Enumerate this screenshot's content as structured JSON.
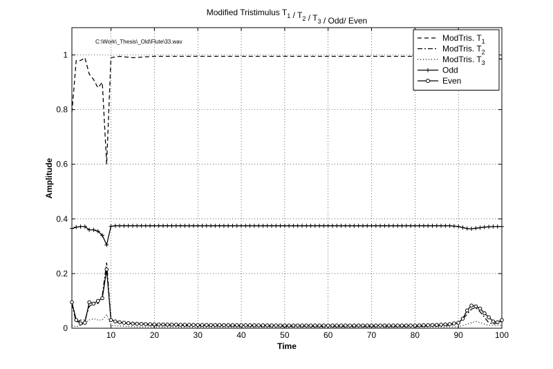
{
  "chart_data": {
    "type": "line",
    "title": {
      "main": "Modified Tristimulus T",
      "parts": [
        {
          "text": "Modified Tristimulus T",
          "sub": "1"
        },
        {
          "text": " / T",
          "sub": "2"
        },
        {
          "text": " / T",
          "sub": "3"
        },
        {
          "text": " / Odd/ Even",
          "sub": ""
        }
      ]
    },
    "annotation": "C:\\Work\\_Thesis\\_Old\\Flute\\33.wav",
    "xlabel": "Time",
    "ylabel": "Amplitude",
    "xlim": [
      1,
      100
    ],
    "ylim": [
      0,
      1.1
    ],
    "xticks": [
      10,
      20,
      30,
      40,
      50,
      60,
      70,
      80,
      90,
      100
    ],
    "yticks": [
      0,
      0.2,
      0.4,
      0.6,
      0.8,
      1
    ],
    "ytick_labels": [
      "0",
      "0.2",
      "0.4",
      "0.6",
      "0.8",
      "1"
    ],
    "grid": true,
    "legend_position": "top-right",
    "series": [
      {
        "name": "ModTris. T",
        "name_sub": "1",
        "style": "dashed",
        "marker": "none",
        "points": [
          [
            1,
            0.79
          ],
          [
            2,
            0.98
          ],
          [
            3,
            0.98
          ],
          [
            4,
            0.99
          ],
          [
            5,
            0.93
          ],
          [
            6,
            0.91
          ],
          [
            7,
            0.88
          ],
          [
            8,
            0.9
          ],
          [
            9,
            0.6
          ],
          [
            10,
            0.99
          ],
          [
            12,
            0.995
          ],
          [
            15,
            0.99
          ],
          [
            20,
            0.995
          ],
          [
            30,
            0.995
          ],
          [
            40,
            0.995
          ],
          [
            50,
            0.995
          ],
          [
            60,
            0.995
          ],
          [
            70,
            0.995
          ],
          [
            80,
            0.995
          ],
          [
            85,
            0.995
          ],
          [
            90,
            0.995
          ],
          [
            95,
            0.99
          ],
          [
            100,
            0.985
          ]
        ]
      },
      {
        "name": "ModTris. T",
        "name_sub": "2",
        "style": "dashdot",
        "marker": "none",
        "points": [
          [
            1,
            0.09
          ],
          [
            2,
            0.02
          ],
          [
            3,
            0.03
          ],
          [
            4,
            0.03
          ],
          [
            5,
            0.08
          ],
          [
            6,
            0.09
          ],
          [
            7,
            0.09
          ],
          [
            8,
            0.12
          ],
          [
            9,
            0.24
          ],
          [
            10,
            0.03
          ],
          [
            12,
            0.02
          ],
          [
            20,
            0.01
          ],
          [
            40,
            0.008
          ],
          [
            60,
            0.006
          ],
          [
            80,
            0.006
          ],
          [
            88,
            0.01
          ],
          [
            90,
            0.02
          ],
          [
            92,
            0.05
          ],
          [
            93,
            0.07
          ],
          [
            94,
            0.075
          ],
          [
            95,
            0.06
          ],
          [
            96,
            0.04
          ],
          [
            97,
            0.02
          ],
          [
            98,
            0.015
          ],
          [
            99,
            0.02
          ],
          [
            100,
            0.025
          ]
        ]
      },
      {
        "name": "ModTris. T",
        "name_sub": "3",
        "style": "dotted",
        "marker": "none",
        "points": [
          [
            1,
            0.01
          ],
          [
            2,
            0.005
          ],
          [
            3,
            0.01
          ],
          [
            4,
            0.02
          ],
          [
            5,
            0.03
          ],
          [
            6,
            0.035
          ],
          [
            7,
            0.03
          ],
          [
            8,
            0.03
          ],
          [
            9,
            0.05
          ],
          [
            10,
            0.01
          ],
          [
            15,
            0.005
          ],
          [
            30,
            0.004
          ],
          [
            60,
            0.004
          ],
          [
            90,
            0.005
          ],
          [
            93,
            0.02
          ],
          [
            94,
            0.025
          ],
          [
            95,
            0.02
          ],
          [
            97,
            0.01
          ],
          [
            100,
            0.01
          ]
        ]
      },
      {
        "name": "Odd",
        "name_sub": "",
        "style": "solid",
        "marker": "plus",
        "points": [
          [
            1,
            0.365
          ],
          [
            2,
            0.37
          ],
          [
            3,
            0.372
          ],
          [
            4,
            0.372
          ],
          [
            5,
            0.36
          ],
          [
            6,
            0.36
          ],
          [
            7,
            0.355
          ],
          [
            8,
            0.34
          ],
          [
            9,
            0.305
          ],
          [
            10,
            0.373
          ],
          [
            11,
            0.375
          ],
          [
            12,
            0.375
          ],
          [
            15,
            0.375
          ],
          [
            20,
            0.375
          ],
          [
            30,
            0.375
          ],
          [
            40,
            0.375
          ],
          [
            50,
            0.375
          ],
          [
            60,
            0.375
          ],
          [
            70,
            0.375
          ],
          [
            80,
            0.375
          ],
          [
            88,
            0.375
          ],
          [
            90,
            0.372
          ],
          [
            92,
            0.365
          ],
          [
            93,
            0.364
          ],
          [
            94,
            0.366
          ],
          [
            96,
            0.37
          ],
          [
            98,
            0.372
          ],
          [
            100,
            0.372
          ]
        ]
      },
      {
        "name": "Even",
        "name_sub": "",
        "style": "solid",
        "marker": "circle",
        "points": [
          [
            1,
            0.095
          ],
          [
            2,
            0.03
          ],
          [
            3,
            0.018
          ],
          [
            4,
            0.02
          ],
          [
            5,
            0.095
          ],
          [
            6,
            0.09
          ],
          [
            7,
            0.1
          ],
          [
            8,
            0.11
          ],
          [
            9,
            0.215
          ],
          [
            10,
            0.03
          ],
          [
            11,
            0.025
          ],
          [
            12,
            0.022
          ],
          [
            13,
            0.02
          ],
          [
            15,
            0.017
          ],
          [
            20,
            0.014
          ],
          [
            30,
            0.012
          ],
          [
            40,
            0.011
          ],
          [
            50,
            0.01
          ],
          [
            60,
            0.01
          ],
          [
            70,
            0.01
          ],
          [
            80,
            0.01
          ],
          [
            85,
            0.012
          ],
          [
            88,
            0.015
          ],
          [
            90,
            0.02
          ],
          [
            91,
            0.035
          ],
          [
            92,
            0.065
          ],
          [
            93,
            0.083
          ],
          [
            94,
            0.08
          ],
          [
            95,
            0.072
          ],
          [
            96,
            0.055
          ],
          [
            97,
            0.04
          ],
          [
            98,
            0.025
          ],
          [
            99,
            0.022
          ],
          [
            100,
            0.03
          ]
        ]
      }
    ]
  }
}
